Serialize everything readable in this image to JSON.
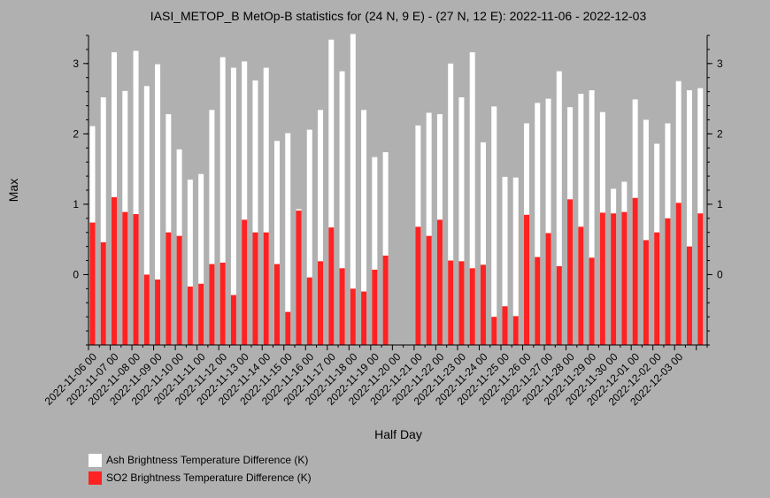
{
  "chart_data": {
    "type": "bar",
    "title": "IASI_METOP_B MetOp-B statistics for (24 N, 9 E) - (27 N, 12 E): 2022-11-06 - 2022-12-03",
    "xlabel": "Half Day",
    "ylabel": "Max",
    "ylim": [
      -1,
      3.4
    ],
    "yticks": [
      0,
      1,
      2,
      3
    ],
    "tick_labels": [
      "2022-11-06 00",
      "2022-11-07 00",
      "2022-11-08 00",
      "2022-11-09 00",
      "2022-11-10 00",
      "2022-11-11 00",
      "2022-11-12 00",
      "2022-11-13 00",
      "2022-11-14 00",
      "2022-11-15 00",
      "2022-11-16 00",
      "2022-11-17 00",
      "2022-11-18 00",
      "2022-11-19 00",
      "2022-11-20 00",
      "2022-11-21 00",
      "2022-11-22 00",
      "2022-11-23 00",
      "2022-11-24 00",
      "2022-11-25 00",
      "2022-11-26 00",
      "2022-11-27 00",
      "2022-11-28 00",
      "2022-11-29 00",
      "2022-11-30 00",
      "2022-12-01 00",
      "2022-12-02 00",
      "2022-12-03 00"
    ],
    "series": [
      {
        "name": "Ash Brightness Temperature Difference (K)",
        "color": "#ffffff",
        "values": [
          2.11,
          2.52,
          3.16,
          2.61,
          3.18,
          2.68,
          2.99,
          2.28,
          1.78,
          1.35,
          1.43,
          2.34,
          3.09,
          2.94,
          3.03,
          2.76,
          2.94,
          1.9,
          2.01,
          0.93,
          2.06,
          2.34,
          3.34,
          2.89,
          3.42,
          2.34,
          1.67,
          1.74,
          null,
          null,
          2.12,
          2.3,
          2.28,
          3.0,
          2.52,
          3.16,
          1.88,
          2.39,
          1.39,
          1.38,
          2.15,
          2.44,
          2.5,
          2.89,
          2.38,
          2.57,
          2.62,
          2.31,
          1.22,
          1.32,
          2.49,
          2.2,
          1.86,
          2.15,
          2.75,
          2.62,
          2.65
        ]
      },
      {
        "name": "SO2 Brightness Temperature Difference (K)",
        "color": "#ff2222",
        "values": [
          0.74,
          0.46,
          1.1,
          0.89,
          0.86,
          0.0,
          -0.07,
          0.6,
          0.55,
          -0.17,
          -0.13,
          0.15,
          0.17,
          -0.29,
          0.78,
          0.6,
          0.6,
          0.15,
          -0.53,
          0.91,
          -0.04,
          0.19,
          0.67,
          0.09,
          -0.2,
          -0.24,
          0.07,
          0.27,
          null,
          null,
          0.68,
          0.55,
          0.78,
          0.2,
          0.19,
          0.09,
          0.14,
          -0.6,
          -0.45,
          -0.59,
          0.85,
          0.25,
          0.59,
          0.12,
          1.07,
          0.68,
          0.24,
          0.88,
          0.87,
          0.89,
          1.09,
          0.49,
          0.6,
          0.8,
          1.02,
          0.4,
          0.87
        ]
      }
    ],
    "legend_position": "bottom-left",
    "grid": false
  }
}
